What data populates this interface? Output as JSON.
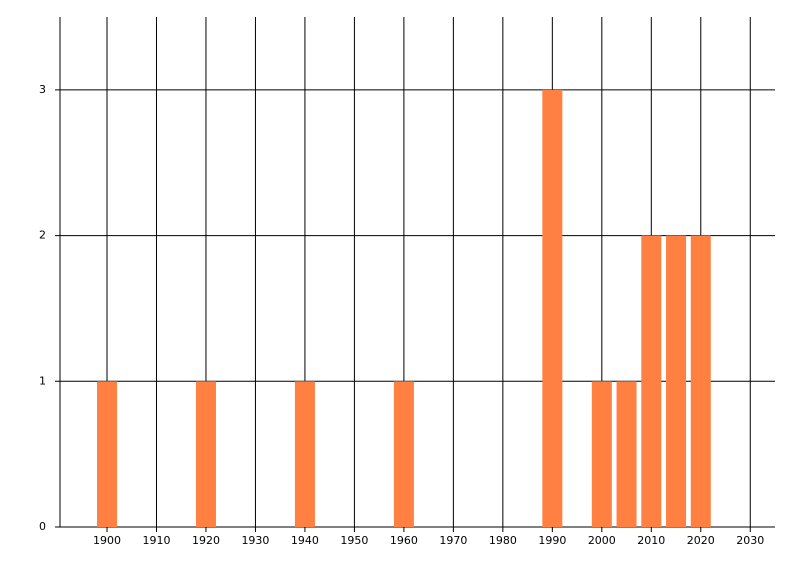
{
  "chart_data": {
    "type": "bar",
    "x": [
      1900,
      1920,
      1940,
      1960,
      1990,
      2000,
      2005,
      2010,
      2015,
      2020
    ],
    "values": [
      1,
      1,
      1,
      1,
      3,
      1,
      1,
      2,
      2,
      2
    ],
    "color": "#ff8040",
    "xlim": [
      1890.5,
      2035
    ],
    "xticks": [
      1900,
      1910,
      1920,
      1930,
      1940,
      1950,
      1960,
      1970,
      1980,
      1990,
      2000,
      2010,
      2020,
      2030
    ],
    "ylim": [
      0,
      3.5
    ],
    "yticks": [
      0,
      1,
      2,
      3
    ],
    "grid": true
  }
}
